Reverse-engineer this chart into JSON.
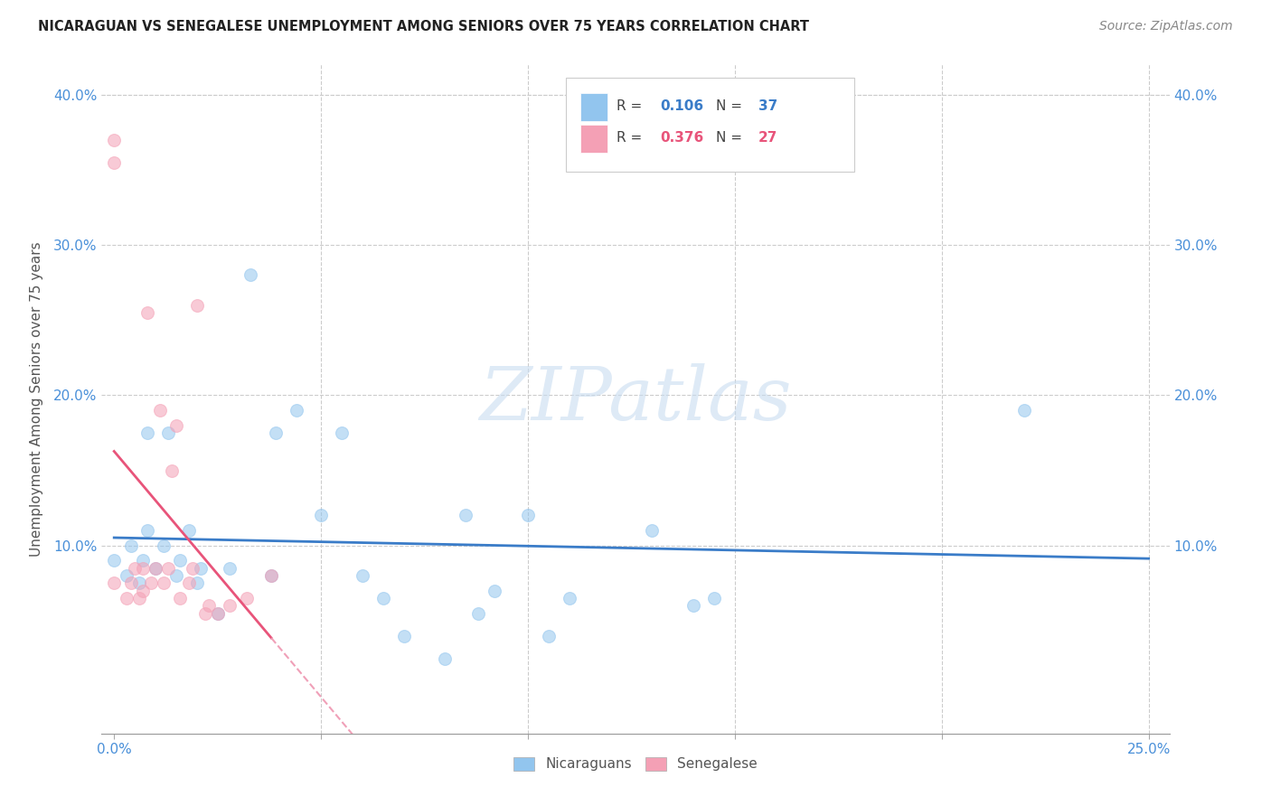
{
  "title": "NICARAGUAN VS SENEGALESE UNEMPLOYMENT AMONG SENIORS OVER 75 YEARS CORRELATION CHART",
  "source": "Source: ZipAtlas.com",
  "ylabel": "Unemployment Among Seniors over 75 years",
  "xlim": [
    -0.003,
    0.255
  ],
  "ylim": [
    -0.025,
    0.42
  ],
  "xtick_pos": [
    0.0,
    0.05,
    0.1,
    0.15,
    0.2,
    0.25
  ],
  "xtick_labels": [
    "0.0%",
    "",
    "",
    "",
    "",
    "25.0%"
  ],
  "ytick_pos": [
    0.0,
    0.1,
    0.2,
    0.3,
    0.4
  ],
  "ytick_labels": [
    "",
    "10.0%",
    "20.0%",
    "30.0%",
    "40.0%"
  ],
  "nicaraguan_color": "#92C5EE",
  "senegalese_color": "#F4A0B5",
  "nicaraguan_line_color": "#3A7CC8",
  "senegalese_line_color": "#E8547A",
  "senegalese_dash_color": "#F0A0B8",
  "R_nicaraguan": 0.106,
  "N_nicaraguan": 37,
  "R_senegalese": 0.376,
  "N_senegalese": 27,
  "nicaraguan_x": [
    0.0,
    0.003,
    0.004,
    0.006,
    0.007,
    0.008,
    0.008,
    0.01,
    0.012,
    0.013,
    0.015,
    0.016,
    0.018,
    0.02,
    0.021,
    0.025,
    0.028,
    0.033,
    0.038,
    0.039,
    0.044,
    0.05,
    0.055,
    0.06,
    0.065,
    0.07,
    0.08,
    0.085,
    0.088,
    0.092,
    0.1,
    0.105,
    0.11,
    0.13,
    0.14,
    0.145,
    0.22
  ],
  "nicaraguan_y": [
    0.09,
    0.08,
    0.1,
    0.075,
    0.09,
    0.11,
    0.175,
    0.085,
    0.1,
    0.175,
    0.08,
    0.09,
    0.11,
    0.075,
    0.085,
    0.055,
    0.085,
    0.28,
    0.08,
    0.175,
    0.19,
    0.12,
    0.175,
    0.08,
    0.065,
    0.04,
    0.025,
    0.12,
    0.055,
    0.07,
    0.12,
    0.04,
    0.065,
    0.11,
    0.06,
    0.065,
    0.19
  ],
  "senegalese_x": [
    0.0,
    0.0,
    0.0,
    0.003,
    0.004,
    0.005,
    0.006,
    0.007,
    0.007,
    0.008,
    0.009,
    0.01,
    0.011,
    0.012,
    0.013,
    0.014,
    0.015,
    0.016,
    0.018,
    0.019,
    0.02,
    0.022,
    0.023,
    0.025,
    0.028,
    0.032,
    0.038
  ],
  "senegalese_y": [
    0.355,
    0.37,
    0.075,
    0.065,
    0.075,
    0.085,
    0.065,
    0.07,
    0.085,
    0.255,
    0.075,
    0.085,
    0.19,
    0.075,
    0.085,
    0.15,
    0.18,
    0.065,
    0.075,
    0.085,
    0.26,
    0.055,
    0.06,
    0.055,
    0.06,
    0.065,
    0.08
  ],
  "background_color": "#ffffff",
  "watermark_text": "ZIPatlas",
  "marker_size": 100,
  "marker_alpha": 0.55
}
